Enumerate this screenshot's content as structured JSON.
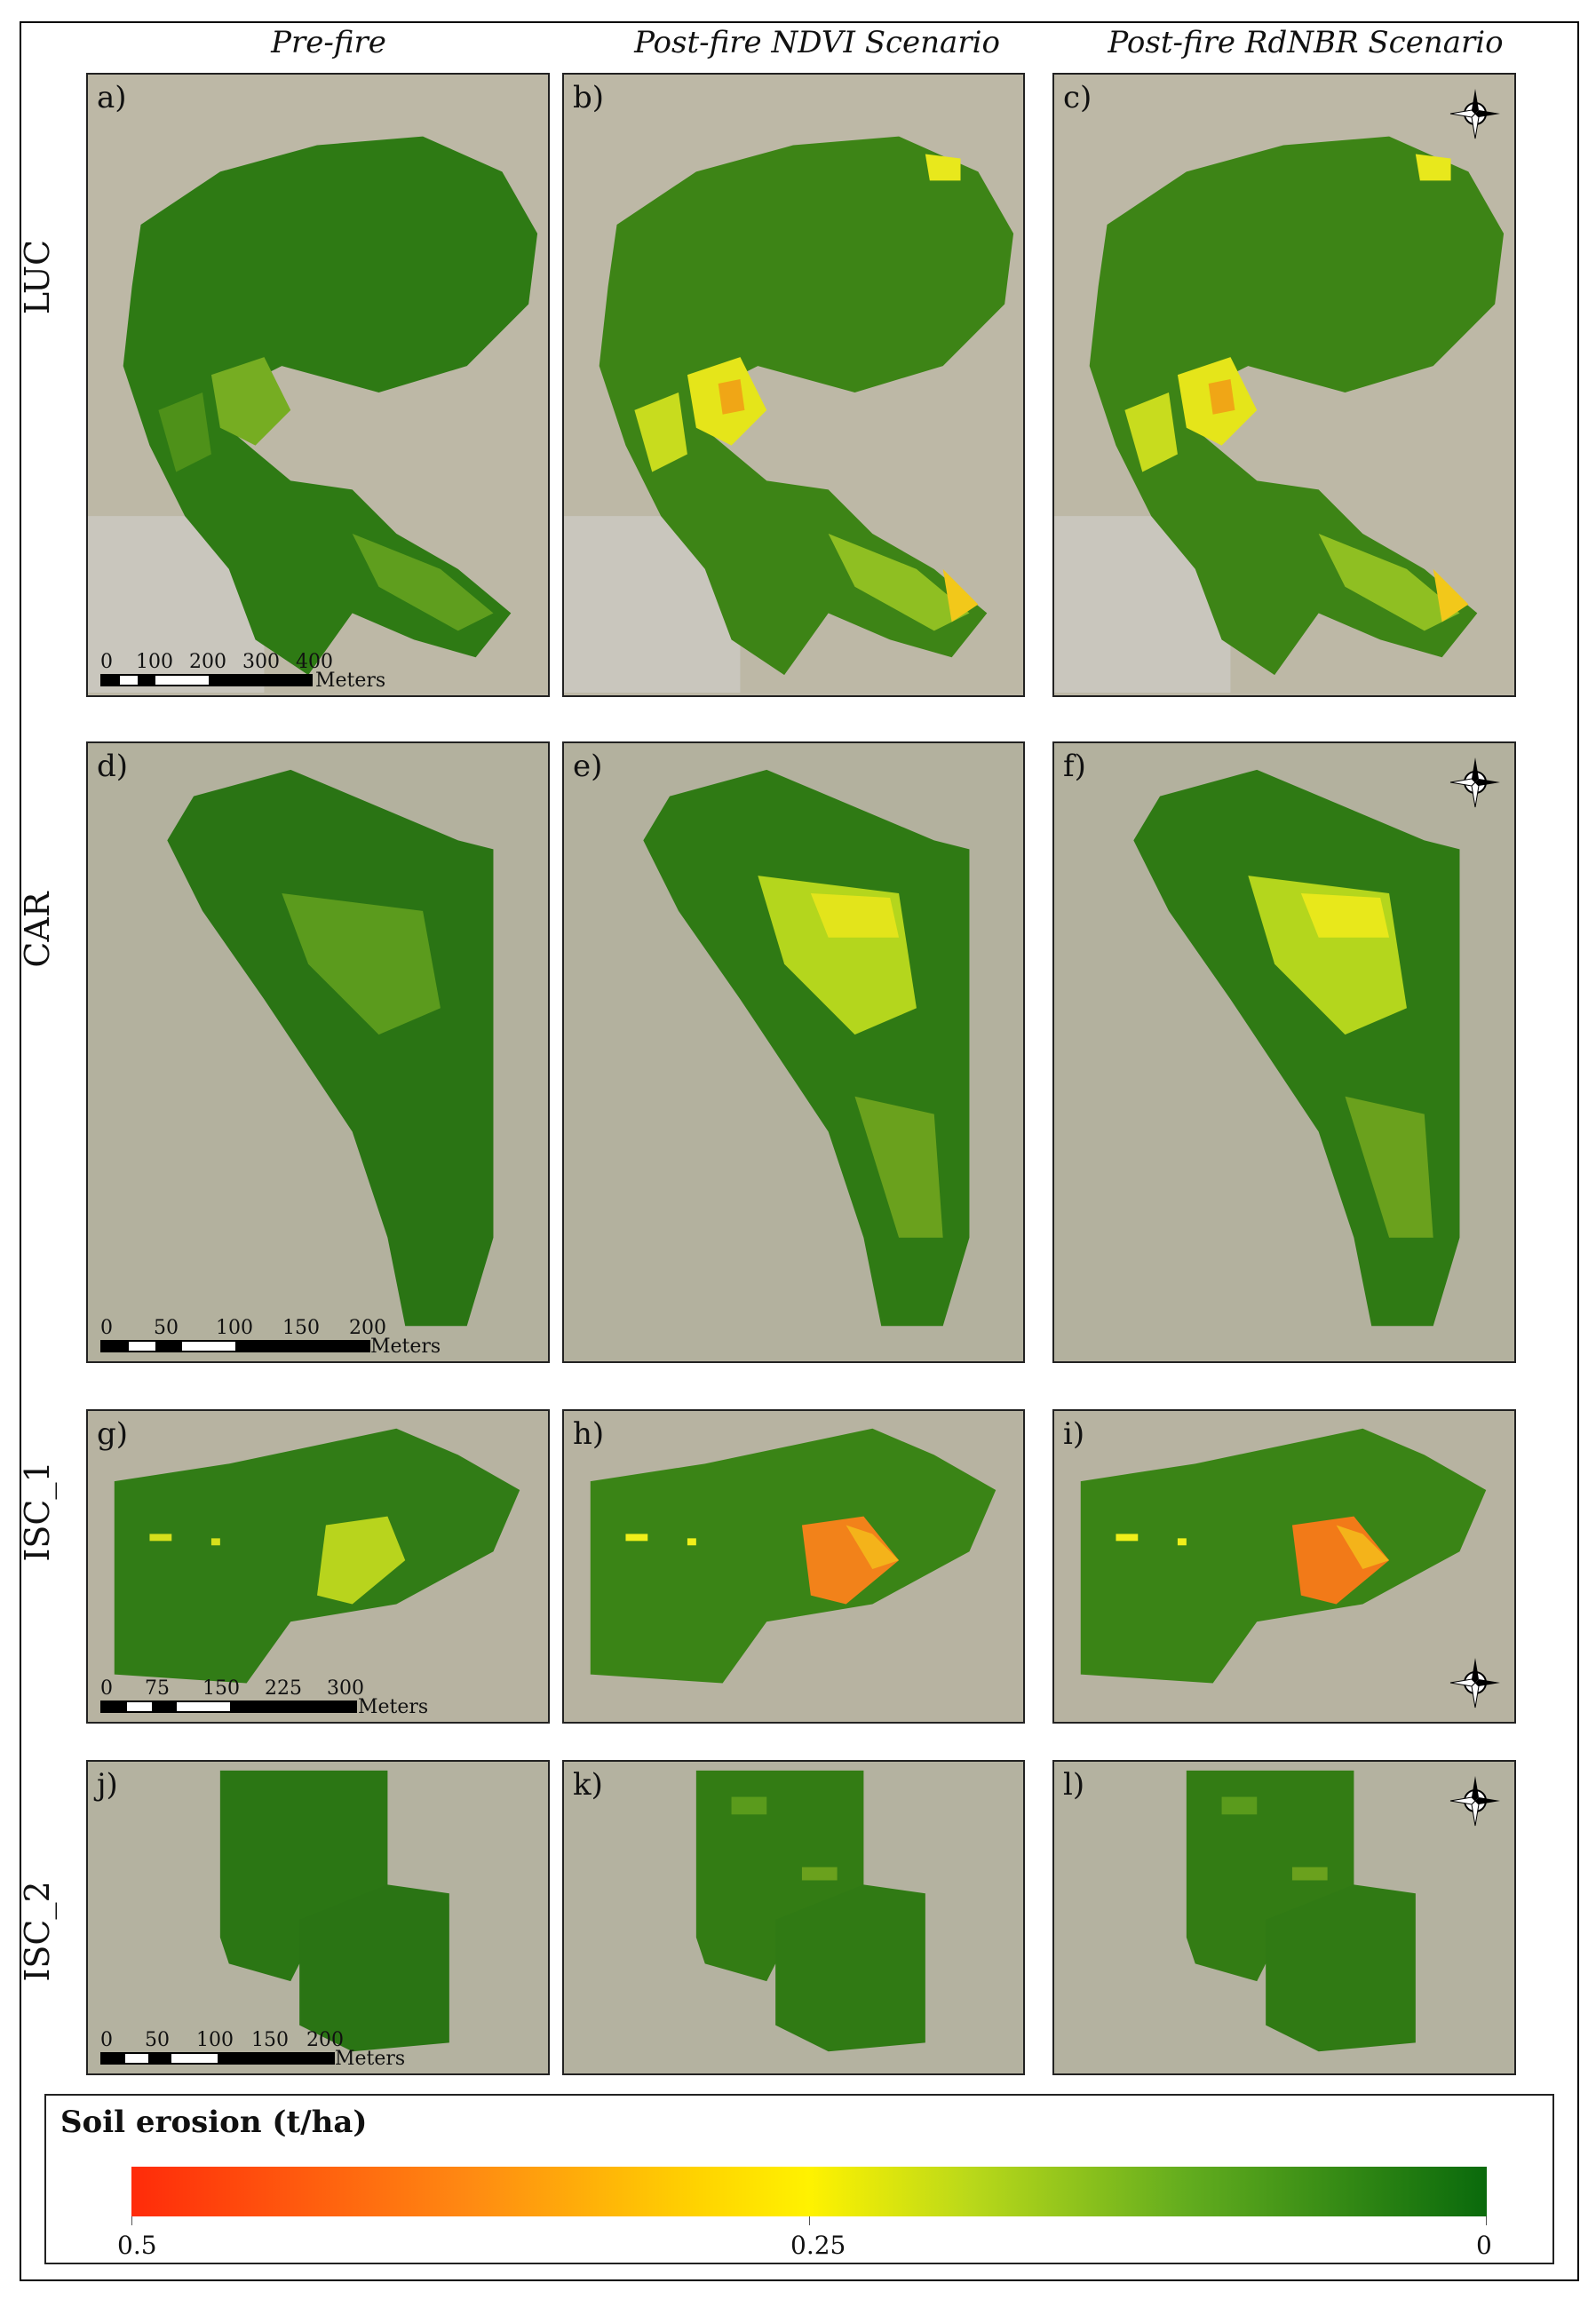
{
  "columns": [
    "Pre-fire",
    "Post-fire NDVI Scenario",
    "Post-fire RdNBR Scenario"
  ],
  "rows": [
    {
      "label": "LUC",
      "panels": [
        "a)",
        "b)",
        "c)"
      ],
      "scale": {
        "ticks": [
          "0",
          "100",
          "200",
          "300",
          "400"
        ],
        "units": "Meters"
      }
    },
    {
      "label": "CAR",
      "panels": [
        "d)",
        "e)",
        "f)"
      ],
      "scale": {
        "ticks": [
          "0",
          "50",
          "100",
          "150",
          "200"
        ],
        "units": "Meters"
      }
    },
    {
      "label": "ISC_1",
      "panels": [
        "g)",
        "h)",
        "i)"
      ],
      "scale": {
        "ticks": [
          "0",
          "75",
          "150",
          "225",
          "300"
        ],
        "units": "Meters"
      }
    },
    {
      "label": "ISC_2",
      "panels": [
        "j)",
        "k)",
        "l)"
      ],
      "scale": {
        "ticks": [
          "0",
          "50",
          "100",
          "150",
          "200"
        ],
        "units": "Meters"
      }
    }
  ],
  "compass": {
    "n": "N",
    "s": "S",
    "e": "E",
    "w": "W"
  },
  "legend": {
    "title": "Soil erosion (t/ha)",
    "min_label": "0.5",
    "mid_label": "0.25",
    "max_label": "0",
    "colors": {
      "high": "#ff2b0a",
      "mid": "#fff200",
      "low": "#0a6a0c"
    }
  },
  "colors": {
    "basemap": "#b9b5a4",
    "veg_dark": "#1f6e12",
    "veg_mid": "#4b9421",
    "veg_light": "#a7cc22",
    "hot_yellow": "#f2ea18",
    "hot_orange": "#f47f16"
  }
}
